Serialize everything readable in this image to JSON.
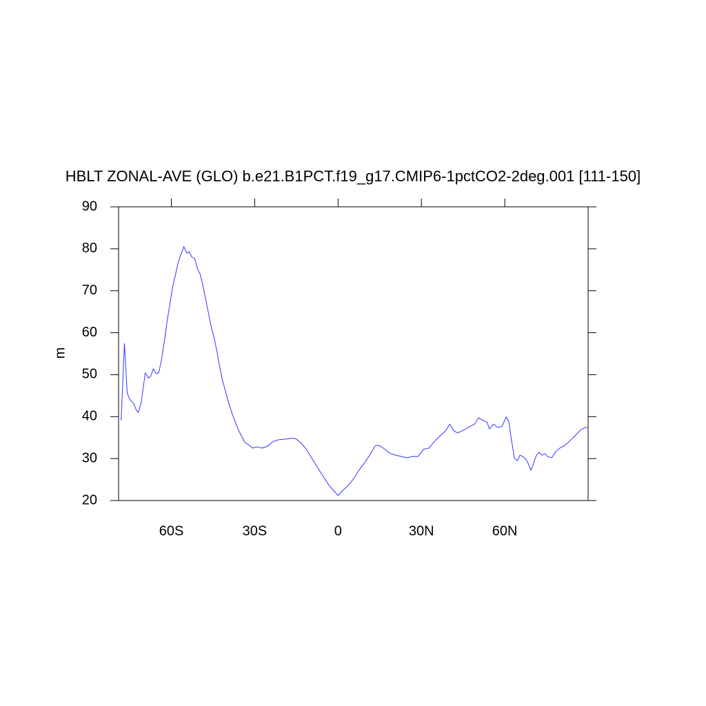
{
  "chart_data": {
    "type": "line",
    "title": "HBLT ZONAL-AVE (GLO) b.e21.B1PCT.f19_g17.CMIP6-1pctCO2-2deg.001 [111-150]",
    "y_label": "m",
    "color": "#3333ff",
    "xlim": [
      -79,
      90
    ],
    "ylim": [
      20,
      90
    ],
    "xticks": [
      {
        "value": -60,
        "label": "60S"
      },
      {
        "value": -30,
        "label": "30S"
      },
      0,
      {
        "value": 30,
        "label": "30N"
      },
      {
        "value": 60,
        "label": "60N"
      }
    ],
    "yticks": [
      20,
      30,
      40,
      50,
      60,
      70,
      80,
      90
    ],
    "x": [
      -78.1,
      -77.4,
      -76.9,
      -76.4,
      -75.9,
      -74.9,
      -73.6,
      -72.6,
      -71.9,
      -70.9,
      -70.2,
      -69.4,
      -68.2,
      -67.4,
      -66.5,
      -65.5,
      -64.5,
      -63.5,
      -62.5,
      -61.5,
      -60.5,
      -59.5,
      -58.5,
      -57.5,
      -56.5,
      -55.5,
      -54.5,
      -53.6,
      -52.6,
      -51.6,
      -50.6,
      -49.6,
      -48.6,
      -47.6,
      -46.6,
      -45.6,
      -44.6,
      -43.6,
      -42.7,
      -41.7,
      -40.7,
      -39.7,
      -38.7,
      -37.7,
      -36.7,
      -35.7,
      -34.7,
      -33.5,
      -32.2,
      -30.7,
      -29.3,
      -27.3,
      -25.3,
      -23.3,
      -21.3,
      -19.3,
      -17.4,
      -15.4,
      -13.4,
      -11.4,
      -9.4,
      -7.4,
      -5.5,
      -3.5,
      -1.5,
      0,
      1.5,
      3.5,
      5.5,
      7.4,
      9.4,
      11.4,
      13.4,
      14.9,
      16.9,
      18.8,
      20.8,
      22.8,
      24.8,
      26.8,
      28.8,
      30.7,
      32.7,
      34.7,
      36.7,
      38.7,
      40.2,
      41.7,
      43.1,
      44.6,
      46.1,
      47.6,
      49.1,
      50.6,
      52.1,
      53.6,
      54.5,
      56,
      57.5,
      59,
      60.5,
      61.5,
      62.5,
      63.5,
      64.5,
      65.5,
      66.5,
      67.4,
      68.4,
      69.4,
      70.4,
      71.4,
      72.4,
      73.4,
      74.4,
      75.4,
      76.9,
      78.4,
      79.8,
      81.3,
      82.8,
      84.3,
      85.8,
      87.3,
      88.8,
      90
    ],
    "values": [
      39.1,
      49.7,
      57.5,
      51.4,
      45.6,
      44,
      43.2,
      41.5,
      41,
      43.2,
      46.5,
      50.4,
      49.2,
      49.7,
      51.4,
      50.2,
      50.5,
      53.8,
      58,
      62.9,
      67,
      71.1,
      73.9,
      76.9,
      78.8,
      80.5,
      79,
      79.3,
      78,
      77.7,
      75.2,
      73.9,
      71.1,
      67.8,
      64.5,
      61.2,
      58.8,
      55.5,
      52.2,
      48.9,
      46.5,
      44,
      41.9,
      39.9,
      38.2,
      36.6,
      35.3,
      33.8,
      33.3,
      32.5,
      32.8,
      32.5,
      33,
      34.1,
      34.5,
      34.6,
      34.8,
      34.8,
      33.8,
      32.2,
      30,
      27.9,
      25.9,
      23.9,
      22.3,
      21.2,
      22.3,
      23.5,
      25.1,
      27.1,
      28.9,
      30.8,
      33.1,
      33.1,
      32.2,
      31.2,
      30.8,
      30.5,
      30.2,
      30.5,
      30.5,
      32.2,
      32.5,
      34.1,
      35.4,
      36.6,
      38.2,
      36.6,
      36.1,
      36.6,
      37.1,
      37.7,
      38.2,
      39.7,
      39.1,
      38.7,
      37.1,
      38.2,
      37.4,
      37.7,
      39.9,
      38.7,
      34.1,
      30,
      29.5,
      30.8,
      30.5,
      30,
      28.9,
      27.2,
      28.9,
      30.8,
      31.5,
      30.8,
      31.2,
      30.5,
      30.2,
      31.7,
      32.5,
      33,
      33.8,
      34.8,
      35.8,
      36.8,
      37.4,
      37.4
    ]
  }
}
